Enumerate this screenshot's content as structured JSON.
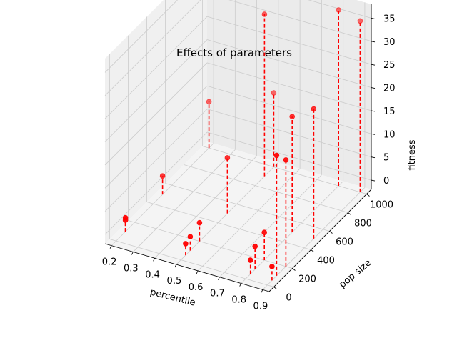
{
  "chart_data": {
    "type": "scatter",
    "subtype": "3d-stem",
    "title": "Effects of parameters",
    "xlabel": "percentile",
    "ylabel": "pop size",
    "zlabel": "fitness",
    "xlim": [
      0.17,
      0.93
    ],
    "ylim": [
      -50,
      1050
    ],
    "zlim": [
      -2,
      38
    ],
    "x_ticks": [
      "0.2",
      "0.3",
      "0.4",
      "0.5",
      "0.6",
      "0.7",
      "0.8",
      "0.9"
    ],
    "y_ticks": [
      "0",
      "200",
      "400",
      "600",
      "800",
      "1000"
    ],
    "z_ticks": [
      "0",
      "5",
      "10",
      "15",
      "20",
      "25",
      "30",
      "35"
    ],
    "grid": true,
    "marker_color": "#ff0000",
    "stem_color": "#ff0000",
    "points": [
      {
        "x": 0.2,
        "y": 100,
        "z": 0.5
      },
      {
        "x": 0.2,
        "y": 100,
        "z": 1.0
      },
      {
        "x": 0.2,
        "y": 500,
        "z": 2.0
      },
      {
        "x": 0.2,
        "y": 1000,
        "z": 8.0
      },
      {
        "x": 0.5,
        "y": 50,
        "z": 0.5
      },
      {
        "x": 0.5,
        "y": 100,
        "z": 1.0
      },
      {
        "x": 0.5,
        "y": 200,
        "z": 2.0
      },
      {
        "x": 0.5,
        "y": 500,
        "z": 10.0
      },
      {
        "x": 0.5,
        "y": 1000,
        "z": 14.0
      },
      {
        "x": 0.8,
        "y": 50,
        "z": 1.0
      },
      {
        "x": 0.8,
        "y": 100,
        "z": 3.0
      },
      {
        "x": 0.8,
        "y": 200,
        "z": 4.0
      },
      {
        "x": 0.9,
        "y": 50,
        "z": 1.0
      },
      {
        "x": 0.8,
        "y": 500,
        "z": 23.0
      },
      {
        "x": 0.8,
        "y": 1000,
        "z": 36.0
      },
      {
        "x": 0.9,
        "y": 200,
        "z": 21.0
      },
      {
        "x": 0.9,
        "y": 500,
        "z": 26.0
      },
      {
        "x": 0.9,
        "y": 1000,
        "z": 35.0
      },
      {
        "x": 0.5,
        "y": 900,
        "z": 33.0
      },
      {
        "x": 0.9,
        "y": 100,
        "z": 24.0
      }
    ]
  }
}
